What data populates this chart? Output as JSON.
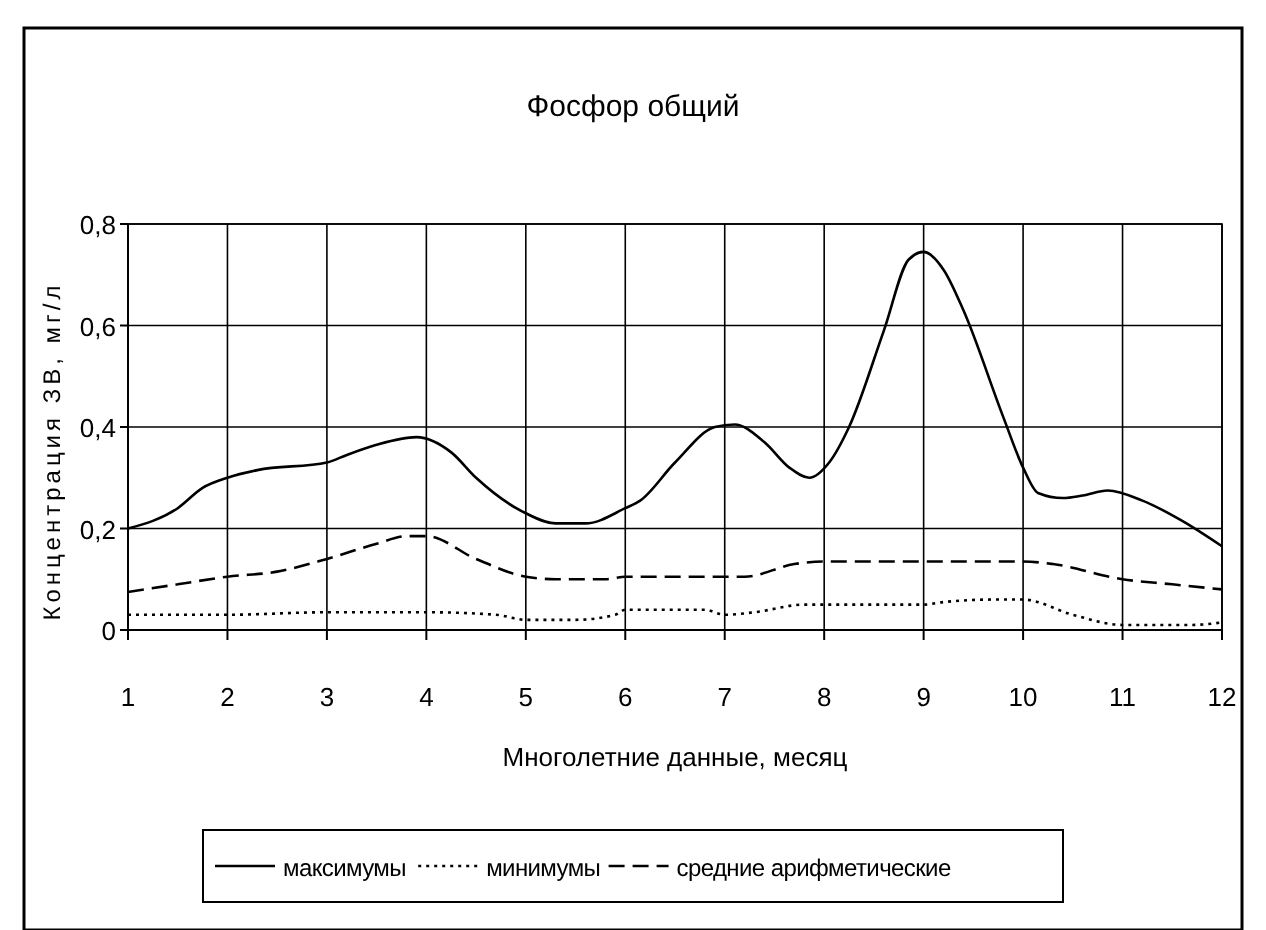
{
  "chart_data": {
    "type": "line",
    "title": "Фосфор общий",
    "xlabel": "Многолетние данные, месяц",
    "ylabel": "Концентрация ЗВ, мг/л",
    "xlim": [
      1,
      12
    ],
    "xticks": [
      1,
      2,
      3,
      4,
      5,
      6,
      7,
      8,
      9,
      10,
      11,
      12
    ],
    "ylim": [
      0,
      0.8
    ],
    "yticks": [
      0,
      {
        "value": 0.2,
        "label": "0,2"
      },
      {
        "value": 0.4,
        "label": "0,4"
      },
      {
        "value": 0.6,
        "label": "0,6"
      },
      {
        "value": 0.8,
        "label": "0,8"
      }
    ],
    "grid": true,
    "legend": "bottom",
    "series": [
      {
        "name": "максимумы",
        "color": "#000000",
        "line_style": "solid",
        "x": [
          1,
          1.5,
          1.75,
          2,
          2.3,
          3,
          3.2,
          3.5,
          3.9,
          4.25,
          4.5,
          5,
          5.3,
          5.6,
          6,
          6.15,
          6.5,
          6.9,
          7.1,
          7.4,
          7.65,
          7.85,
          8.05,
          8.25,
          8.6,
          8.85,
          9,
          9.2,
          9.4,
          9.8,
          10,
          10.15,
          10.4,
          10.6,
          10.85,
          11.2,
          11.6,
          12
        ],
        "values": [
          0.2,
          0.24,
          0.28,
          0.3,
          0.315,
          0.33,
          0.345,
          0.365,
          0.38,
          0.35,
          0.3,
          0.23,
          0.21,
          0.21,
          0.24,
          0.255,
          0.33,
          0.4,
          0.405,
          0.37,
          0.32,
          0.3,
          0.33,
          0.4,
          0.59,
          0.73,
          0.745,
          0.71,
          0.63,
          0.42,
          0.32,
          0.27,
          0.26,
          0.265,
          0.275,
          0.255,
          0.215,
          0.165
        ]
      },
      {
        "name": "минимумы",
        "color": "#000000",
        "line_style": "dotted",
        "x": [
          1,
          2,
          3,
          4,
          4.7,
          5,
          5.5,
          5.9,
          6,
          6.8,
          7,
          7.3,
          7.8,
          9,
          9.2,
          9.7,
          10,
          10.5,
          11,
          11.7,
          12
        ],
        "values": [
          0.03,
          0.03,
          0.035,
          0.035,
          0.03,
          0.02,
          0.02,
          0.03,
          0.04,
          0.04,
          0.03,
          0.035,
          0.05,
          0.05,
          0.055,
          0.06,
          0.06,
          0.03,
          0.01,
          0.01,
          0.015
        ]
      },
      {
        "name": "средние арифметические",
        "color": "#000000",
        "line_style": "dashed",
        "x": [
          1,
          1.5,
          2,
          2.5,
          3,
          3.5,
          3.8,
          4,
          4.5,
          5,
          5.3,
          5.8,
          6,
          7.2,
          7.7,
          8,
          10,
          10.3,
          11,
          11.5,
          12
        ],
        "values": [
          0.075,
          0.09,
          0.105,
          0.115,
          0.14,
          0.17,
          0.185,
          0.185,
          0.14,
          0.105,
          0.1,
          0.1,
          0.105,
          0.105,
          0.13,
          0.135,
          0.135,
          0.13,
          0.1,
          0.09,
          0.08
        ]
      }
    ]
  }
}
